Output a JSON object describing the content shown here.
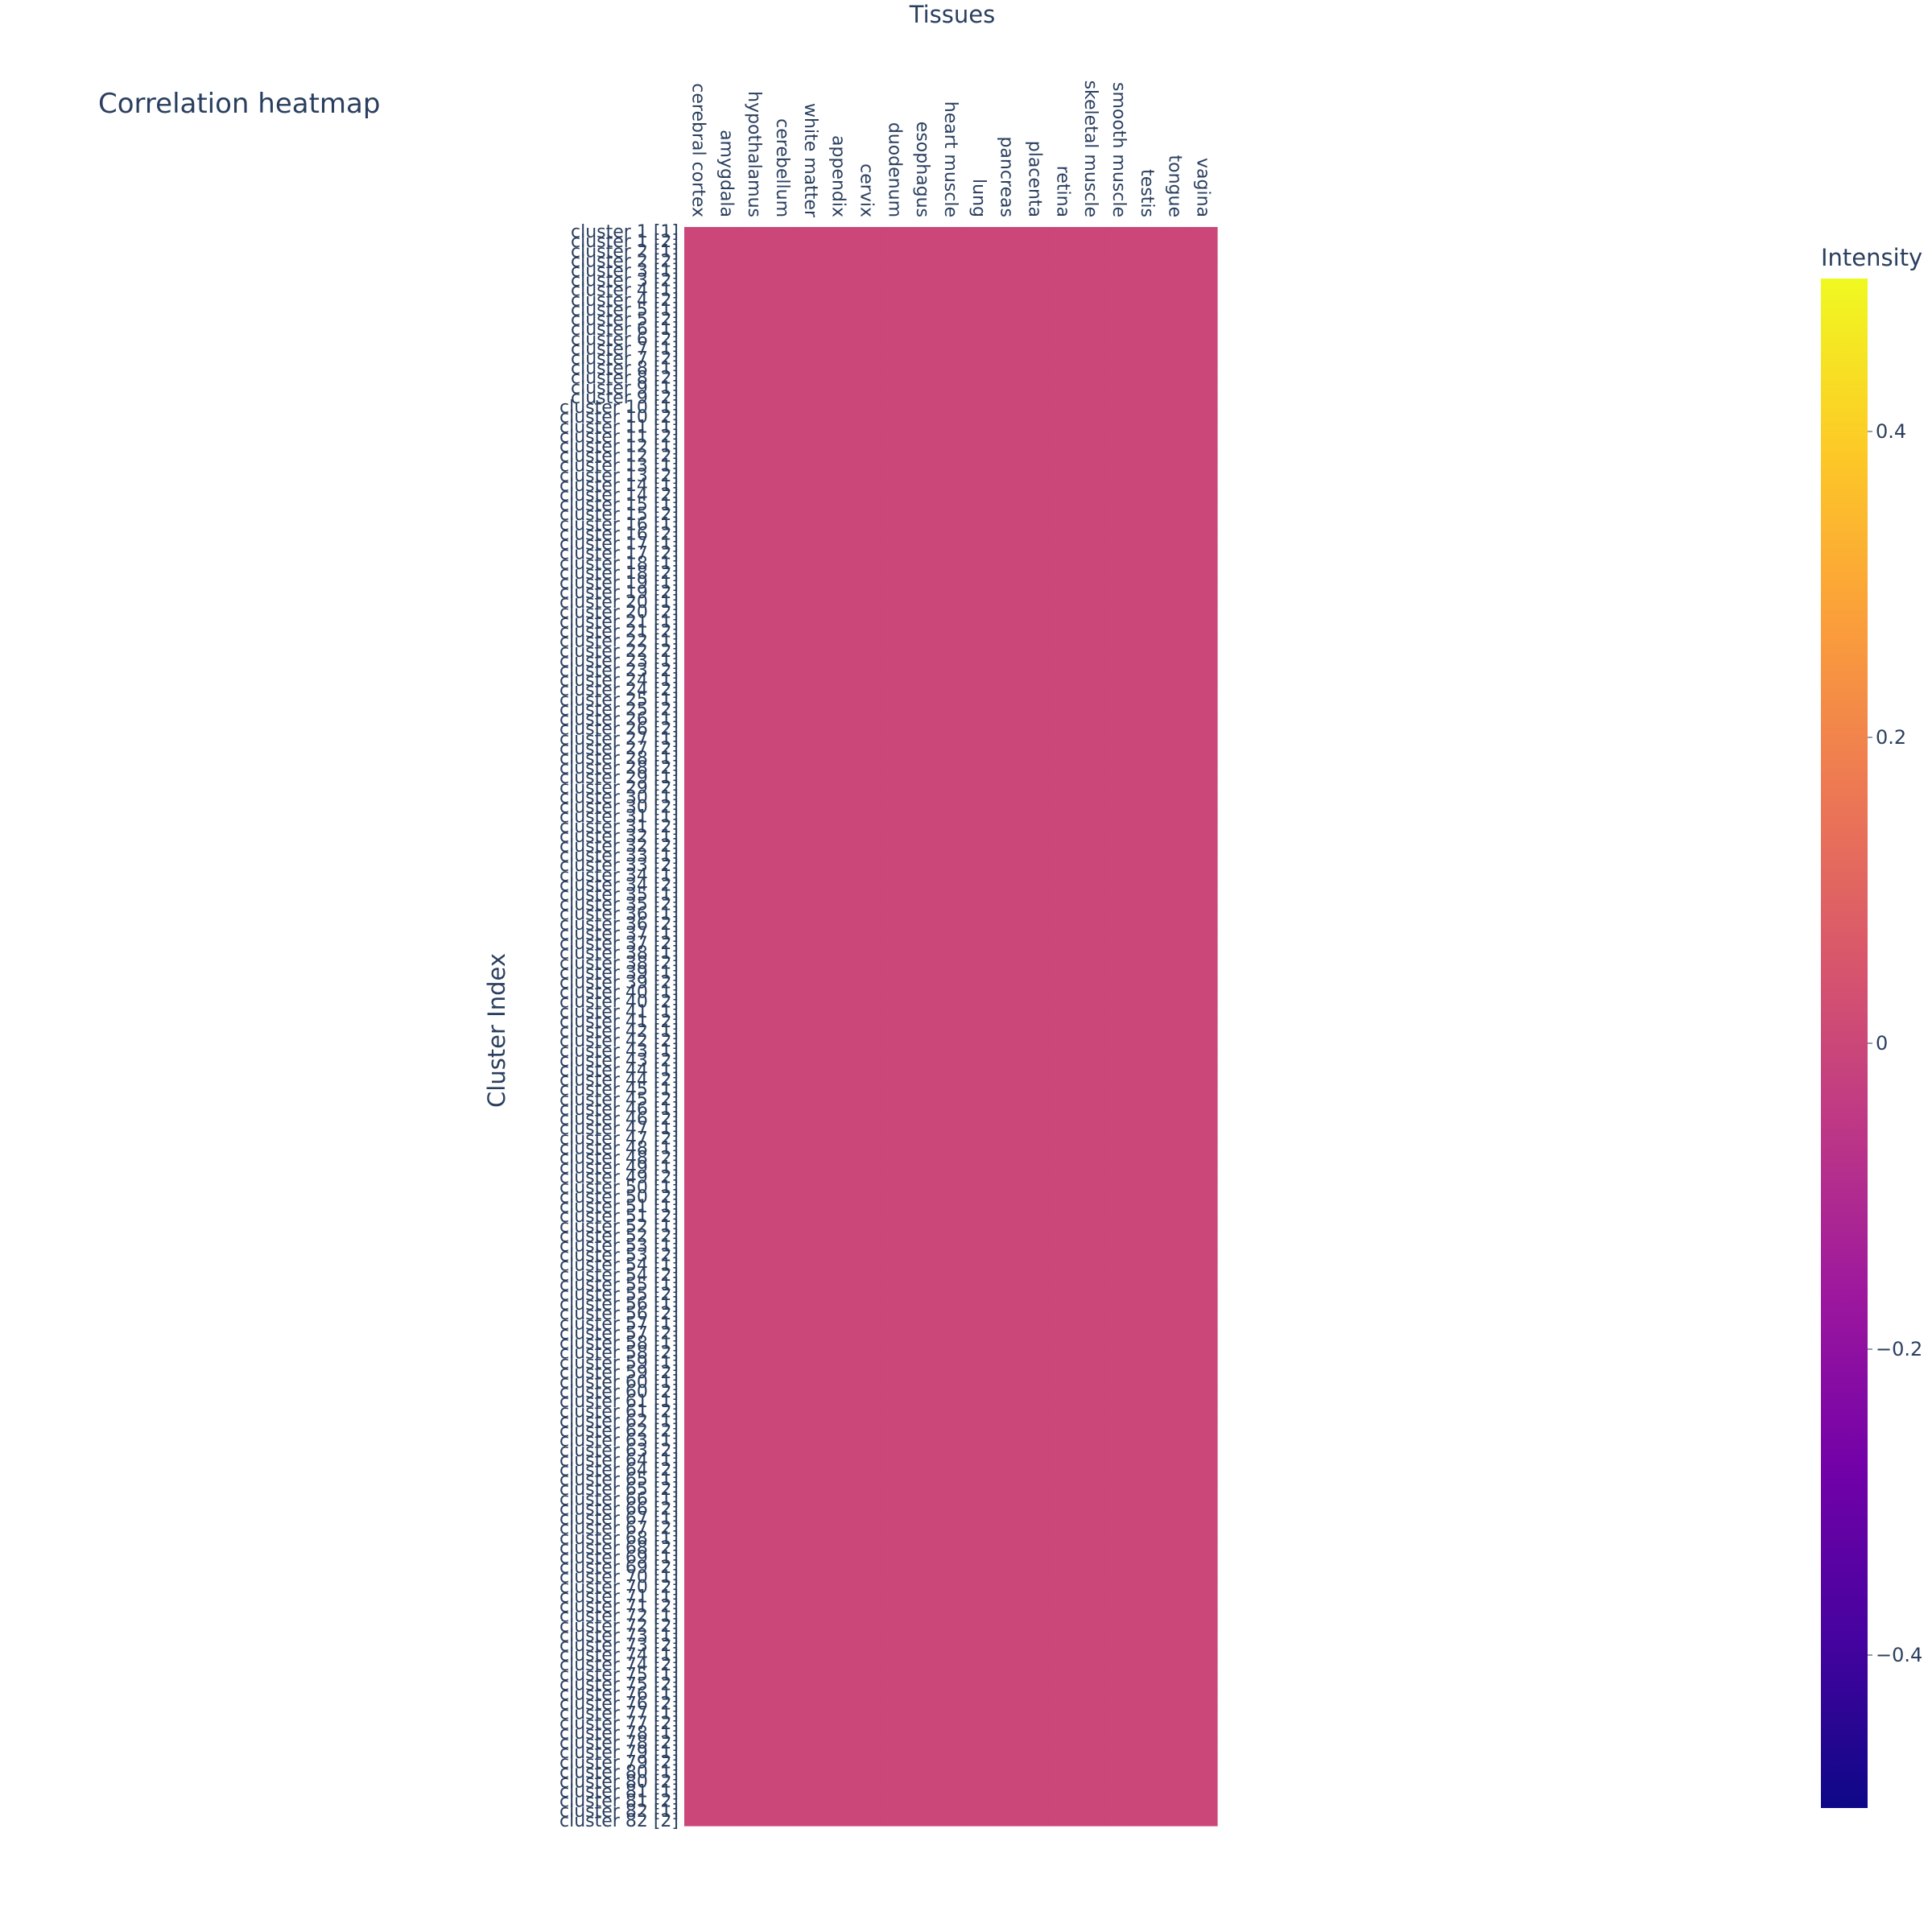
{
  "chart_data": {
    "type": "heatmap",
    "title": "Correlation heatmap",
    "xlabel": "Tissues",
    "ylabel": "Cluster Index",
    "x": [
      "cerebral cortex",
      "amygdala",
      "hypothalamus",
      "cerebellum",
      "white matter",
      "appendix",
      "cervix",
      "duodenum",
      "esophagus",
      "heart muscle",
      "lung",
      "pancreas",
      "placenta",
      "retina",
      "skeletal muscle",
      "smooth muscle",
      "testis",
      "tongue",
      "vagina"
    ],
    "y": [
      "cluster 1 [1]",
      "cluster 1 [2]",
      "cluster 2 [1]",
      "cluster 2 [2]",
      "cluster 3 [1]",
      "cluster 3 [2]",
      "cluster 4 [1]",
      "cluster 4 [2]",
      "cluster 5 [1]",
      "cluster 5 [2]",
      "cluster 6 [1]",
      "cluster 6 [2]",
      "cluster 7 [1]",
      "cluster 7 [2]",
      "cluster 8 [1]",
      "cluster 8 [2]",
      "cluster 9 [1]",
      "cluster 9 [2]",
      "cluster 10 [1]",
      "cluster 10 [2]",
      "cluster 11 [1]",
      "cluster 11 [2]",
      "cluster 12 [1]",
      "cluster 12 [2]",
      "cluster 13 [1]",
      "cluster 13 [2]",
      "cluster 14 [1]",
      "cluster 14 [2]",
      "cluster 15 [1]",
      "cluster 15 [2]",
      "cluster 16 [1]",
      "cluster 16 [2]",
      "cluster 17 [1]",
      "cluster 17 [2]",
      "cluster 18 [1]",
      "cluster 18 [2]",
      "cluster 19 [1]",
      "cluster 19 [2]",
      "cluster 20 [1]",
      "cluster 20 [2]",
      "cluster 21 [1]",
      "cluster 21 [2]",
      "cluster 22 [1]",
      "cluster 22 [2]",
      "cluster 23 [1]",
      "cluster 23 [2]",
      "cluster 24 [1]",
      "cluster 24 [2]",
      "cluster 25 [1]",
      "cluster 25 [2]",
      "cluster 26 [1]",
      "cluster 26 [2]",
      "cluster 27 [1]",
      "cluster 27 [2]",
      "cluster 28 [1]",
      "cluster 28 [2]",
      "cluster 29 [1]",
      "cluster 29 [2]",
      "cluster 30 [1]",
      "cluster 30 [2]",
      "cluster 31 [1]",
      "cluster 31 [2]",
      "cluster 32 [1]",
      "cluster 32 [2]",
      "cluster 33 [1]",
      "cluster 33 [2]",
      "cluster 34 [1]",
      "cluster 34 [2]",
      "cluster 35 [1]",
      "cluster 35 [2]",
      "cluster 36 [1]",
      "cluster 36 [2]",
      "cluster 37 [1]",
      "cluster 37 [2]",
      "cluster 38 [1]",
      "cluster 38 [2]",
      "cluster 39 [1]",
      "cluster 39 [2]",
      "cluster 40 [1]",
      "cluster 40 [2]",
      "cluster 41 [1]",
      "cluster 41 [2]",
      "cluster 42 [1]",
      "cluster 42 [2]",
      "cluster 43 [1]",
      "cluster 43 [2]",
      "cluster 44 [1]",
      "cluster 44 [2]",
      "cluster 45 [1]",
      "cluster 45 [2]",
      "cluster 46 [1]",
      "cluster 46 [2]",
      "cluster 47 [1]",
      "cluster 47 [2]",
      "cluster 48 [1]",
      "cluster 48 [2]",
      "cluster 49 [1]",
      "cluster 49 [2]",
      "cluster 50 [1]",
      "cluster 50 [2]",
      "cluster 51 [1]",
      "cluster 51 [2]",
      "cluster 52 [1]",
      "cluster 52 [2]",
      "cluster 53 [1]",
      "cluster 53 [2]",
      "cluster 54 [1]",
      "cluster 54 [2]",
      "cluster 55 [1]",
      "cluster 55 [2]",
      "cluster 56 [1]",
      "cluster 56 [2]",
      "cluster 57 [1]",
      "cluster 57 [2]",
      "cluster 58 [1]",
      "cluster 58 [2]",
      "cluster 59 [1]",
      "cluster 59 [2]",
      "cluster 60 [1]",
      "cluster 60 [2]",
      "cluster 61 [1]",
      "cluster 61 [2]",
      "cluster 62 [1]",
      "cluster 62 [2]",
      "cluster 63 [1]",
      "cluster 63 [2]",
      "cluster 64 [1]",
      "cluster 64 [2]",
      "cluster 65 [1]",
      "cluster 65 [2]",
      "cluster 66 [1]",
      "cluster 66 [2]",
      "cluster 67 [1]",
      "cluster 67 [2]",
      "cluster 68 [1]",
      "cluster 68 [2]",
      "cluster 69 [1]",
      "cluster 69 [2]",
      "cluster 70 [1]",
      "cluster 70 [2]",
      "cluster 71 [1]",
      "cluster 71 [2]",
      "cluster 72 [1]",
      "cluster 72 [2]",
      "cluster 73 [1]",
      "cluster 73 [2]",
      "cluster 74 [1]",
      "cluster 74 [2]",
      "cluster 75 [1]",
      "cluster 75 [2]",
      "cluster 76 [1]",
      "cluster 76 [2]",
      "cluster 77 [1]",
      "cluster 77 [2]",
      "cluster 78 [1]",
      "cluster 78 [2]",
      "cluster 79 [1]",
      "cluster 79 [2]",
      "cluster 80 [1]",
      "cluster 80 [2]",
      "cluster 81 [1]",
      "cluster 81 [2]",
      "cluster 82 [1]",
      "cluster 82 [2]"
    ],
    "uniform_value": 0,
    "colorscale": [
      "#0d0887",
      "#46039f",
      "#7201a8",
      "#9c179e",
      "#bd3786",
      "#d8576b",
      "#ed7953",
      "#fb9f3a",
      "#fdca26",
      "#f0f921"
    ],
    "colorbar": {
      "title": "Intensity",
      "range": [
        -0.5,
        0.5
      ],
      "ticks": [
        -0.4,
        -0.2,
        0,
        0.2,
        0.4
      ],
      "tick_labels": [
        "−0.4",
        "−0.2",
        "0",
        "0.2",
        "0.4"
      ]
    },
    "xaxis_side": "top",
    "grid": false
  }
}
